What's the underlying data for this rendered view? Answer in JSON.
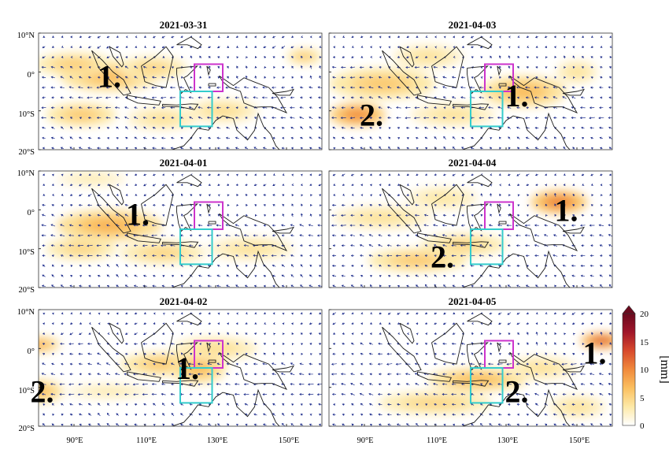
{
  "figure": {
    "panels": [
      {
        "title": "2021-03-31",
        "labels": [
          {
            "text": "1.",
            "lon": 100,
            "lat": -1
          }
        ],
        "blobs": [
          [
            100,
            -1,
            14,
            4,
            0.35
          ],
          [
            90,
            2,
            11,
            3,
            0.28
          ],
          [
            112,
            1,
            10,
            3,
            0.25
          ],
          [
            92,
            -11,
            10,
            3,
            0.3
          ],
          [
            115,
            -12,
            10,
            3,
            0.2
          ],
          [
            132,
            -10,
            10,
            3,
            0.22
          ],
          [
            155,
            4,
            5,
            2,
            0.3
          ]
        ]
      },
      {
        "title": "2021-04-01",
        "labels": [
          {
            "text": "1.",
            "lon": 108,
            "lat": -1
          }
        ],
        "blobs": [
          [
            100,
            -4,
            15,
            4,
            0.38
          ],
          [
            92,
            -10,
            10,
            3,
            0.25
          ],
          [
            115,
            -11,
            12,
            3,
            0.25
          ],
          [
            140,
            -10,
            12,
            3,
            0.2
          ],
          [
            95,
            8,
            10,
            2,
            0.15
          ]
        ]
      },
      {
        "title": "2021-04-02",
        "labels": [
          {
            "text": "2.",
            "lon": 81,
            "lat": -11
          },
          {
            "text": "1.",
            "lon": 122,
            "lat": -5
          }
        ],
        "blobs": [
          [
            80,
            1,
            6,
            2,
            0.4
          ],
          [
            80,
            -11,
            7,
            3,
            0.35
          ],
          [
            115,
            -4,
            12,
            3,
            0.3
          ],
          [
            125,
            -5,
            8,
            4,
            0.35
          ],
          [
            130,
            0,
            12,
            3,
            0.22
          ],
          [
            100,
            -11,
            12,
            2,
            0.15
          ]
        ]
      },
      {
        "title": "2021-04-03",
        "labels": [
          {
            "text": "2.",
            "lon": 92,
            "lat": -11
          },
          {
            "text": "1.",
            "lon": 133,
            "lat": -6
          }
        ],
        "blobs": [
          [
            88,
            -11,
            8,
            3,
            0.5
          ],
          [
            95,
            -3,
            15,
            4,
            0.3
          ],
          [
            108,
            4,
            10,
            3,
            0.2
          ],
          [
            135,
            -5,
            12,
            4,
            0.35
          ],
          [
            115,
            -11,
            12,
            3,
            0.2
          ],
          [
            150,
            0,
            6,
            3,
            0.2
          ]
        ]
      },
      {
        "title": "2021-04-04",
        "labels": [
          {
            "text": "1.",
            "lon": 147,
            "lat": 0
          },
          {
            "text": "2.",
            "lon": 112,
            "lat": -12
          }
        ],
        "blobs": [
          [
            145,
            2,
            8,
            3,
            0.55
          ],
          [
            105,
            -13,
            14,
            3,
            0.3
          ],
          [
            118,
            -9,
            12,
            3,
            0.25
          ],
          [
            95,
            -2,
            14,
            3,
            0.2
          ],
          [
            112,
            3,
            10,
            3,
            0.18
          ]
        ]
      },
      {
        "title": "2021-04-05",
        "labels": [
          {
            "text": "1.",
            "lon": 155,
            "lat": -1
          },
          {
            "text": "2.",
            "lon": 133,
            "lat": -11
          }
        ],
        "blobs": [
          [
            157,
            2,
            6,
            2,
            0.65
          ],
          [
            122,
            -8,
            14,
            3,
            0.35
          ],
          [
            110,
            -14,
            16,
            3,
            0.25
          ],
          [
            140,
            -5,
            10,
            3,
            0.2
          ],
          [
            150,
            -15,
            8,
            3,
            0.2
          ]
        ]
      }
    ],
    "x_axis": {
      "ticks": [
        90,
        110,
        130,
        150
      ],
      "range": [
        80,
        160
      ],
      "tick_labels": [
        "90°E",
        "110°E",
        "130°E",
        "150°E"
      ]
    },
    "y_axis": {
      "ticks": [
        10,
        0,
        -10,
        -20
      ],
      "range": [
        -20,
        10
      ],
      "tick_labels": [
        "10°N",
        "0°",
        "10°S",
        "20°S"
      ]
    },
    "boxes": [
      {
        "name": "magenta",
        "color": "#cc33cc",
        "lon": [
          124,
          132
        ],
        "lat": [
          -5,
          2
        ]
      },
      {
        "name": "cyan",
        "color": "#33cccc",
        "lon": [
          120,
          129
        ],
        "lat": [
          -14,
          -5
        ]
      }
    ],
    "colorbar": {
      "label": "[mm]",
      "range": [
        0,
        20
      ],
      "ticks": [
        0,
        5,
        10,
        15,
        20
      ],
      "colors": [
        "#ffffff",
        "#fde9a8",
        "#fbc060",
        "#f08a3c",
        "#d84a2c",
        "#a0162a",
        "#6a0a1e"
      ]
    },
    "colors": {
      "vector": "#1a2a8a",
      "coast": "#1a1a1a"
    }
  }
}
